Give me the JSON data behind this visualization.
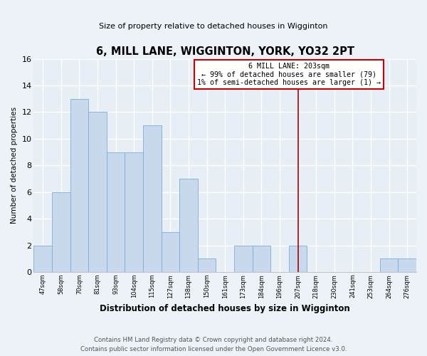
{
  "title": "6, MILL LANE, WIGGINTON, YORK, YO32 2PT",
  "subtitle": "Size of property relative to detached houses in Wigginton",
  "xlabel": "Distribution of detached houses by size in Wigginton",
  "ylabel": "Number of detached properties",
  "bin_labels": [
    "47sqm",
    "58sqm",
    "70sqm",
    "81sqm",
    "93sqm",
    "104sqm",
    "115sqm",
    "127sqm",
    "138sqm",
    "150sqm",
    "161sqm",
    "173sqm",
    "184sqm",
    "196sqm",
    "207sqm",
    "218sqm",
    "230sqm",
    "241sqm",
    "253sqm",
    "264sqm",
    "276sqm"
  ],
  "bar_heights": [
    2,
    6,
    13,
    12,
    9,
    9,
    11,
    3,
    7,
    1,
    0,
    2,
    2,
    0,
    2,
    0,
    0,
    0,
    0,
    1,
    0,
    1
  ],
  "bar_color": "#c8d9ee",
  "bar_edge_color": "#7aafd4",
  "vline_color": "#aa0000",
  "annotation_title": "6 MILL LANE: 203sqm",
  "annotation_line1": "← 99% of detached houses are smaller (79)",
  "annotation_line2": "1% of semi-detached houses are larger (1) →",
  "annotation_box_edge": "#cc0000",
  "ylim": [
    0,
    16
  ],
  "yticks": [
    0,
    2,
    4,
    6,
    8,
    10,
    12,
    14,
    16
  ],
  "footer1": "Contains HM Land Registry data © Crown copyright and database right 2024.",
  "footer2": "Contains public sector information licensed under the Open Government Licence v3.0.",
  "bg_color": "#edf2f8",
  "plot_bg_color": "#e8eef5",
  "grid_color": "#ffffff"
}
